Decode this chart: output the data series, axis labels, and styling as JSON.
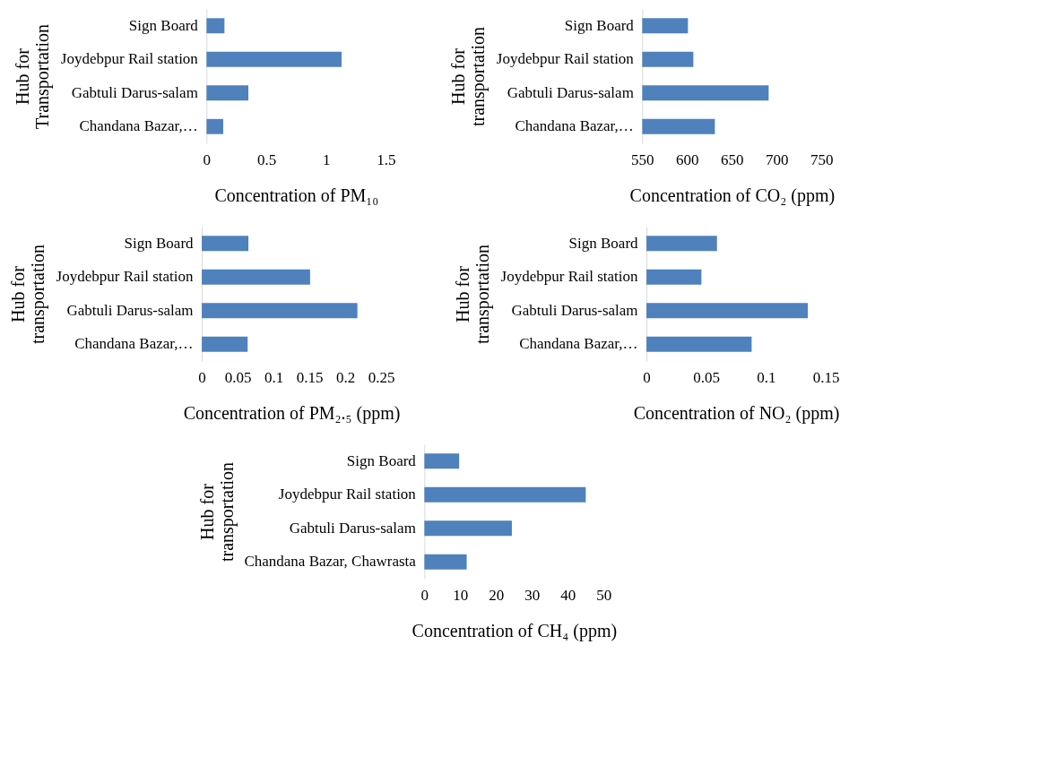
{
  "chart_data": [
    {
      "type": "bar",
      "orientation": "horizontal",
      "xlabel": "Concentration of PM₁₀",
      "ylabel": "Hub for Transportation",
      "categories": [
        "Sign Board",
        "Joydebpur Rail station",
        "Gabtuli Darus-salam",
        "Chandana Bazar,…"
      ],
      "values": [
        0.15,
        1.13,
        0.35,
        0.14
      ],
      "color": "#4f81bd",
      "xlim": [
        0,
        1.5
      ],
      "xticks": [
        0,
        0.5,
        1,
        1.5
      ],
      "grid": false
    },
    {
      "type": "bar",
      "orientation": "horizontal",
      "xlabel": "Concentration of CO₂ (ppm)",
      "ylabel": "Hub for transportation",
      "categories": [
        "Sign Board",
        "Joydebpur Rail station",
        "Gabtuli Darus-salam",
        "Chandana Bazar,…"
      ],
      "values": [
        601,
        607,
        691,
        631
      ],
      "color": "#4f81bd",
      "xlim": [
        550,
        750
      ],
      "xticks": [
        550,
        600,
        650,
        700,
        750
      ],
      "grid": false
    },
    {
      "type": "bar",
      "orientation": "horizontal",
      "xlabel": "Concentration of PM₂.₅ (ppm)",
      "ylabel": "Hub for transportation",
      "categories": [
        "Sign Board",
        "Joydebpur Rail station",
        "Gabtuli Darus-salam",
        "Chandana Bazar,…"
      ],
      "values": [
        0.065,
        0.151,
        0.217,
        0.064
      ],
      "color": "#4f81bd",
      "xlim": [
        0,
        0.25
      ],
      "xticks": [
        0,
        0.05,
        0.1,
        0.15,
        0.2,
        0.25
      ],
      "grid": false
    },
    {
      "type": "bar",
      "orientation": "horizontal",
      "xlabel": "Concentration of NO₂ (ppm)",
      "ylabel": "Hub for transportation",
      "categories": [
        "Sign Board",
        "Joydebpur Rail station",
        "Gabtuli Darus-salam",
        "Chandana Bazar,…"
      ],
      "values": [
        0.059,
        0.046,
        0.135,
        0.088
      ],
      "color": "#4f81bd",
      "xlim": [
        0,
        0.15
      ],
      "xticks": [
        0,
        0.05,
        0.1,
        0.15
      ],
      "grid": false
    },
    {
      "type": "bar",
      "orientation": "horizontal",
      "xlabel": "Concentration of CH₄ (ppm)",
      "ylabel": "Hub for transportation",
      "categories": [
        "Sign Board",
        "Joydebpur Rail station",
        "Gabtuli Darus-salam",
        "Chandana Bazar, Chawrasta"
      ],
      "values": [
        9.7,
        45,
        24.4,
        11.8
      ],
      "color": "#4f81bd",
      "xlim": [
        0,
        50
      ],
      "xticks": [
        0,
        10,
        20,
        30,
        40,
        50
      ],
      "grid": false
    }
  ]
}
